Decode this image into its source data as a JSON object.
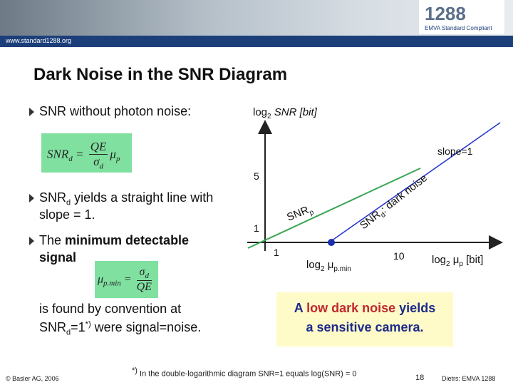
{
  "header": {
    "url": "www.standard1288.org",
    "logo": "1288",
    "logo_subtitle": "EMVA Standard Compliant"
  },
  "title": "Dark Noise in the SNR Diagram",
  "bullets": [
    {
      "text": "SNR without photon noise:"
    },
    {
      "lead": "SNR",
      "sub": "d",
      "rest": " yields a straight line with",
      "line2": "slope = 1."
    },
    {
      "lead": "The ",
      "bold": "minimum detectable",
      "bold2": "signal"
    }
  ],
  "formula1": {
    "lhs": "SNR",
    "lhs_sub": "d",
    "eq": "=",
    "num": "QE",
    "den": "σ",
    "den_sub": "d",
    "factor": "μ",
    "factor_sub": "p"
  },
  "formula2": {
    "lhs": "μ",
    "lhs_sub": "p.min",
    "eq": "=",
    "num": "σ",
    "num_sub": "d",
    "den": "QE"
  },
  "convention": {
    "line1": "is found by convention at",
    "lead": "SNR",
    "sub": "d",
    "eq": "=1",
    "sup": "*)",
    "rest": " were signal=noise."
  },
  "diagram": {
    "y_label": {
      "log": "log",
      "base": "2",
      "rest": " SNR [bit]"
    },
    "slope": "slope=1",
    "y_ticks": [
      "5",
      "1"
    ],
    "x_ticks": [
      "1",
      "10"
    ],
    "snr_p": {
      "text": "SNR",
      "sub": "p"
    },
    "snr_d": {
      "text": "SNR",
      "sub": "d",
      "rest": ": dark noise"
    },
    "x_label": {
      "log": "log",
      "base": "2",
      "mu": " μ",
      "sub": "p",
      "rest": " [bit]"
    },
    "min_label": {
      "log": "log",
      "base": "2",
      "mu": " μ",
      "sub": "p.min"
    }
  },
  "callout": {
    "a": "A ",
    "b": "low dark noise",
    "c": " yields",
    "line2": "a sensitive camera."
  },
  "footer": {
    "copyright": "© Basler AG, 2006",
    "note_mark": "*)",
    "note": " In the double-logarithmic diagram SNR=1 equals log(SNR) = 0",
    "page": "18",
    "author": "Dietrs: EMVA 1288"
  }
}
